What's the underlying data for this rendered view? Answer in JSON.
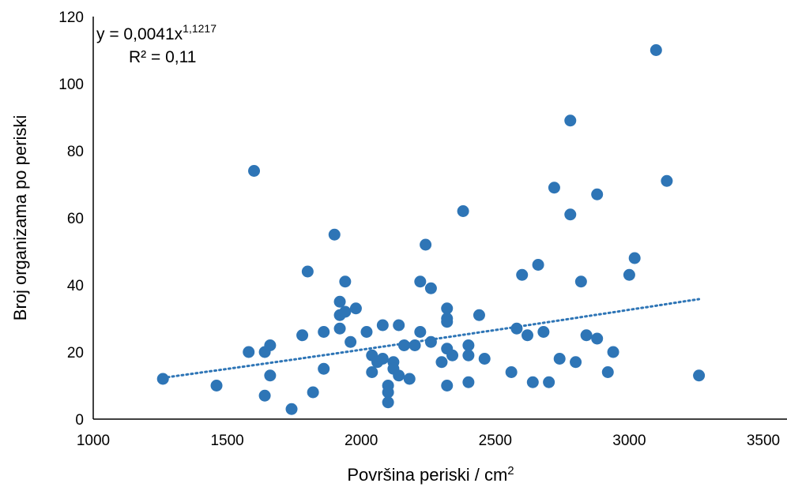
{
  "chart_data": {
    "type": "scatter",
    "xlabel": "Površina periski / cm",
    "xlabel_sup": "2",
    "ylabel": "Broj organizama po periski",
    "xlim": [
      1000,
      3500
    ],
    "ylim": [
      0,
      120
    ],
    "x_ticks": [
      1000,
      1500,
      2000,
      2500,
      3000,
      3500
    ],
    "y_ticks": [
      0,
      20,
      40,
      60,
      80,
      100,
      120
    ],
    "x_tick_labels": [
      "1000",
      "1500",
      "2000",
      "2500",
      "3000",
      "3500"
    ],
    "y_tick_labels": [
      "0",
      "20",
      "40",
      "60",
      "80",
      "100",
      "120"
    ],
    "grid": false,
    "color": "#2e75b6",
    "trendline": {
      "type": "power",
      "a": 0.0041,
      "b": 1.1217,
      "x_range": [
        1260,
        3260
      ],
      "equation_base": "y = 0,0041x",
      "equation_exp": "1,1217",
      "r2_label": "R² = 0,11"
    },
    "points": [
      [
        1260,
        12
      ],
      [
        1460,
        10
      ],
      [
        1580,
        20
      ],
      [
        1600,
        74
      ],
      [
        1640,
        20
      ],
      [
        1640,
        7
      ],
      [
        1660,
        22
      ],
      [
        1660,
        13
      ],
      [
        1740,
        3
      ],
      [
        1780,
        25
      ],
      [
        1800,
        44
      ],
      [
        1820,
        8
      ],
      [
        1860,
        26
      ],
      [
        1860,
        15
      ],
      [
        1900,
        55
      ],
      [
        1920,
        35
      ],
      [
        1920,
        31
      ],
      [
        1920,
        27
      ],
      [
        1940,
        41
      ],
      [
        1940,
        32
      ],
      [
        1960,
        23
      ],
      [
        1980,
        33
      ],
      [
        2020,
        26
      ],
      [
        2040,
        19
      ],
      [
        2040,
        14
      ],
      [
        2060,
        17
      ],
      [
        2080,
        28
      ],
      [
        2080,
        18
      ],
      [
        2100,
        10
      ],
      [
        2100,
        8
      ],
      [
        2100,
        5
      ],
      [
        2120,
        17
      ],
      [
        2120,
        15
      ],
      [
        2140,
        28
      ],
      [
        2140,
        13
      ],
      [
        2160,
        22
      ],
      [
        2180,
        12
      ],
      [
        2200,
        22
      ],
      [
        2220,
        41
      ],
      [
        2220,
        26
      ],
      [
        2240,
        52
      ],
      [
        2260,
        39
      ],
      [
        2260,
        23
      ],
      [
        2300,
        17
      ],
      [
        2320,
        33
      ],
      [
        2320,
        30
      ],
      [
        2320,
        29
      ],
      [
        2320,
        21
      ],
      [
        2320,
        10
      ],
      [
        2340,
        19
      ],
      [
        2380,
        62
      ],
      [
        2400,
        22
      ],
      [
        2400,
        19
      ],
      [
        2400,
        11
      ],
      [
        2440,
        31
      ],
      [
        2460,
        18
      ],
      [
        2560,
        14
      ],
      [
        2580,
        27
      ],
      [
        2600,
        43
      ],
      [
        2620,
        25
      ],
      [
        2640,
        11
      ],
      [
        2660,
        46
      ],
      [
        2680,
        26
      ],
      [
        2700,
        11
      ],
      [
        2720,
        69
      ],
      [
        2740,
        18
      ],
      [
        2780,
        89
      ],
      [
        2780,
        61
      ],
      [
        2800,
        17
      ],
      [
        2820,
        41
      ],
      [
        2840,
        25
      ],
      [
        2880,
        67
      ],
      [
        2880,
        24
      ],
      [
        2920,
        14
      ],
      [
        2940,
        20
      ],
      [
        3000,
        43
      ],
      [
        3020,
        48
      ],
      [
        3100,
        110
      ],
      [
        3140,
        71
      ],
      [
        3260,
        13
      ]
    ]
  }
}
